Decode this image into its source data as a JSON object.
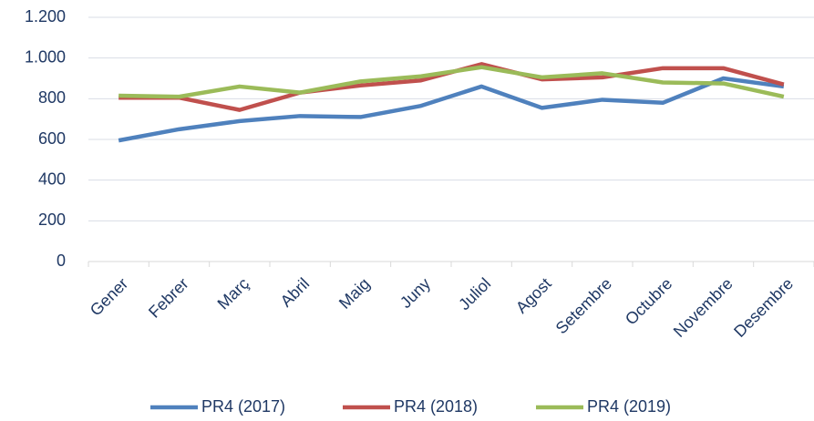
{
  "chart_data": {
    "type": "line",
    "categories": [
      "Gener",
      "Febrer",
      "Març",
      "Abril",
      "Maig",
      "Juny",
      "Juliol",
      "Agost",
      "Setembre",
      "Octubre",
      "Novembre",
      "Desembre"
    ],
    "series": [
      {
        "name": "PR4 (2017)",
        "color": "#4f81bd",
        "values": [
          595,
          650,
          690,
          715,
          710,
          765,
          860,
          755,
          795,
          780,
          900,
          860
        ]
      },
      {
        "name": "PR4 (2018)",
        "color": "#c0504d",
        "values": [
          805,
          805,
          745,
          830,
          865,
          890,
          970,
          895,
          905,
          950,
          950,
          870
        ]
      },
      {
        "name": "PR4 (2019)",
        "color": "#9bbb59",
        "values": [
          815,
          810,
          860,
          830,
          885,
          910,
          955,
          905,
          925,
          880,
          875,
          810
        ]
      }
    ],
    "ylim": [
      0,
      1200
    ],
    "yticks": [
      0,
      200,
      400,
      600,
      800,
      {
        "value": 1000,
        "label": "1.000"
      },
      {
        "value": 1200,
        "label": "1.200"
      }
    ],
    "grid": true,
    "legend": "bottom"
  }
}
